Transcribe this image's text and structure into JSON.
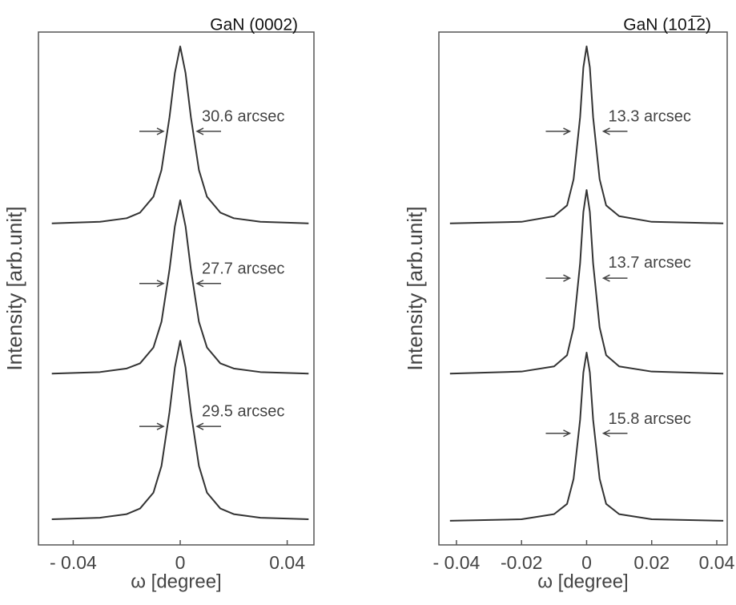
{
  "chart_data": [
    {
      "type": "line",
      "title": "GaN (0002)",
      "x_label": "ω [degree]",
      "y_label": "Intensity [arb.unit]",
      "xlim": [
        -0.053,
        0.05
      ],
      "ylim": [
        0,
        100
      ],
      "xticks": [
        {
          "value": -0.04,
          "label": "- 0.04"
        },
        0,
        0.04
      ],
      "x": [
        -0.048,
        -0.03,
        -0.02,
        -0.015,
        -0.01,
        -0.007,
        -0.004,
        -0.002,
        0,
        0.002,
        0.004,
        0.007,
        0.01,
        0.015,
        0.02,
        0.03,
        0.048
      ],
      "series": [
        {
          "color": "#333333",
          "values": [
            62.7,
            63.0,
            63.7,
            64.8,
            67.9,
            73.1,
            83.4,
            92.0,
            97.2,
            92.0,
            83.4,
            73.1,
            67.9,
            64.8,
            63.7,
            63.0,
            62.7
          ]
        },
        {
          "color": "#333333",
          "values": [
            33.4,
            33.7,
            34.4,
            35.4,
            38.5,
            43.5,
            53.7,
            62.1,
            67.2,
            62.1,
            53.7,
            43.5,
            38.5,
            35.4,
            34.4,
            33.7,
            33.4
          ]
        },
        {
          "color": "#333333",
          "values": [
            5,
            5.3,
            6.0,
            7.1,
            10.2,
            15.4,
            25.9,
            34.6,
            39.8,
            34.6,
            25.9,
            15.4,
            10.2,
            7.1,
            6.0,
            5.3,
            5
          ]
        }
      ],
      "annotations": [
        "30.6 arcsec",
        "27.7 arcsec",
        "29.5 arcsec"
      ]
    },
    {
      "type": "line",
      "title": "GaN (101̅2)",
      "x_label": "ω [degree]",
      "y_label": "Intensity [arb.unit]",
      "xlim": [
        -0.0454,
        0.0432
      ],
      "ylim": [
        0,
        100
      ],
      "xticks": [
        {
          "value": -0.04,
          "label": "- 0.04"
        },
        -0.02,
        0,
        0.02,
        0.04
      ],
      "x": [
        -0.042,
        -0.02,
        -0.01,
        -0.006,
        -0.004,
        -0.002,
        -0.001,
        0,
        0.001,
        0.002,
        0.004,
        0.006,
        0.01,
        0.02,
        0.042
      ],
      "series": [
        {
          "color": "#333333",
          "values": [
            62.7,
            63.0,
            64.1,
            66.2,
            71.3,
            83.4,
            93.1,
            97.2,
            93.1,
            83.4,
            71.3,
            66.2,
            64.1,
            63.0,
            62.7
          ]
        },
        {
          "color": "#333333",
          "values": [
            33.4,
            33.8,
            34.8,
            37.0,
            42.4,
            54.9,
            64.9,
            69.2,
            64.9,
            54.9,
            42.4,
            37.0,
            34.8,
            33.8,
            33.4
          ]
        },
        {
          "color": "#333333",
          "values": [
            4.7,
            5.0,
            6.0,
            8.0,
            12.9,
            24.4,
            33.6,
            37.5,
            33.6,
            24.4,
            12.9,
            8.0,
            6.0,
            5.0,
            4.7
          ]
        }
      ],
      "annotations": [
        "13.3 arcsec",
        "13.7 arcsec",
        "15.8 arcsec"
      ]
    }
  ]
}
